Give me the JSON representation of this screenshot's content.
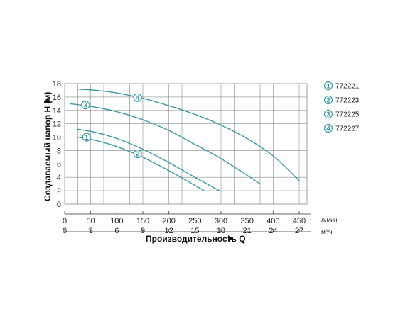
{
  "colors": {
    "curve": "#3a9aa2",
    "grid": "#8a8a8a",
    "axis": "#333333",
    "marker_fill": "#ffffff"
  },
  "chart_data": {
    "type": "line",
    "title": "",
    "xlabel": "Производительность Q",
    "ylabel": "Создаваемый напор H (м)",
    "x_units": [
      "л/мин",
      "м³/ч"
    ],
    "xlim": [
      0,
      465
    ],
    "ylim": [
      0,
      18
    ],
    "x_ticks_lmin": [
      "0",
      "50",
      "100",
      "150",
      "200",
      "250",
      "300",
      "350",
      "400",
      "450"
    ],
    "x_ticks_m3h": [
      "0",
      "3",
      "6",
      "9",
      "12",
      "15",
      "18",
      "21",
      "24",
      "27"
    ],
    "y_ticks": [
      "0",
      "2",
      "4",
      "6",
      "8",
      "10",
      "12",
      "14",
      "16",
      "18"
    ],
    "grid": true,
    "legend_position": "right",
    "series": [
      {
        "name": "772221",
        "marker": "1",
        "x": [
          25,
          60,
          100,
          150,
          200,
          250,
          270
        ],
        "y": [
          10.0,
          9.5,
          8.6,
          7.0,
          5.0,
          2.8,
          1.9
        ]
      },
      {
        "name": "772223",
        "marker": "2",
        "x": [
          25,
          60,
          100,
          150,
          200,
          250,
          297
        ],
        "y": [
          11.2,
          10.7,
          9.8,
          8.2,
          6.2,
          4.0,
          2.0
        ]
      },
      {
        "name": "772225",
        "marker": "3",
        "x": [
          10,
          50,
          100,
          150,
          200,
          250,
          300,
          376
        ],
        "y": [
          15.0,
          14.6,
          13.8,
          12.6,
          11.0,
          8.9,
          6.8,
          3.0
        ]
      },
      {
        "name": "772227",
        "marker": "4",
        "x": [
          25,
          60,
          100,
          150,
          200,
          250,
          300,
          350,
          400,
          450
        ],
        "y": [
          17.2,
          17.0,
          16.6,
          15.8,
          14.7,
          13.4,
          11.8,
          9.8,
          7.2,
          3.5
        ]
      }
    ],
    "marker_positions": [
      {
        "series": 0,
        "x": 42,
        "y": 10.0
      },
      {
        "series": 1,
        "x": 140,
        "y": 7.5
      },
      {
        "series": 2,
        "x": 40,
        "y": 14.8
      },
      {
        "series": 3,
        "x": 140,
        "y": 15.9
      }
    ]
  }
}
